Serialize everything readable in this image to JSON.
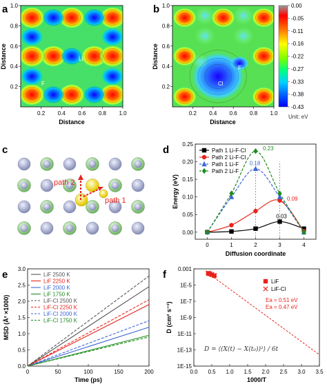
{
  "panels": {
    "a": {
      "label": "a",
      "xlabel": "Distance",
      "ylabel": "Distance",
      "atom1": "Li",
      "atom2": "F"
    },
    "b": {
      "label": "b",
      "xlabel": "Distance",
      "ylabel": "Distance",
      "atom1": "F",
      "atom2": "Cl"
    },
    "c": {
      "label": "c",
      "path1": "path 1",
      "path2": "path 2"
    },
    "d": {
      "label": "d"
    },
    "e": {
      "label": "e"
    },
    "f": {
      "label": "f",
      "formula": "D = ⟨(X(t) − X(t₀))²⟩ / 6t"
    }
  },
  "colorbar": {
    "ticks": [
      "0.00",
      "-0.05",
      "-0.11",
      "-0.16",
      "-0.22",
      "-0.27",
      "-0.33",
      "-0.38",
      "-0.43"
    ],
    "unit": "Unit: eV",
    "colors": [
      "#999999",
      "#ff0000",
      "#ff8000",
      "#ffff00",
      "#80ff00",
      "#00ff80",
      "#00c0ff",
      "#0060ff",
      "#0000ff"
    ]
  },
  "contour_axes": {
    "x_ticks": [
      "0.2",
      "0.4",
      "0.6",
      "0.8",
      "1.0"
    ],
    "y_ticks": [
      "0.2",
      "0.4",
      "0.6",
      "0.8",
      "1.0"
    ]
  },
  "chart_data": [
    {
      "panel": "d",
      "type": "line",
      "xlabel": "Diffusion coordinate",
      "ylabel": "Energy (eV)",
      "xlim": [
        -0.5,
        4.5
      ],
      "ylim": [
        -0.02,
        0.25
      ],
      "x_ticks": [
        0,
        1,
        2,
        3,
        4
      ],
      "y_ticks": [
        "0.00",
        "0.05",
        "0.10",
        "0.15",
        "0.20",
        "0.25"
      ],
      "series": [
        {
          "name": "Path 1 Li-F-Cl",
          "color": "#000000",
          "dash": "solid",
          "marker": "square",
          "x": [
            0,
            1,
            2,
            3,
            4
          ],
          "y": [
            0.0,
            0.002,
            0.01,
            0.03,
            0.01
          ]
        },
        {
          "name": "Path 2 Li-F-Cl",
          "color": "#e8231c",
          "dash": "solid",
          "marker": "circle",
          "x": [
            0,
            1,
            2,
            3,
            4
          ],
          "y": [
            0.0,
            0.02,
            0.06,
            0.09,
            0.003
          ]
        },
        {
          "name": "Path 1 Li-F",
          "color": "#3d67d6",
          "dash": "dash",
          "marker": "triangle",
          "x": [
            0,
            1,
            2,
            3,
            4
          ],
          "y": [
            0.0,
            0.1,
            0.18,
            0.1,
            0.0
          ]
        },
        {
          "name": "Path 2 Li-F",
          "color": "#1f8a1f",
          "dash": "dash",
          "marker": "diamond",
          "x": [
            0,
            1,
            2,
            3,
            4
          ],
          "y": [
            0.0,
            0.11,
            0.23,
            0.11,
            0.0
          ]
        }
      ],
      "annotations": [
        {
          "text": "0.23",
          "x": 2.3,
          "y": 0.232,
          "color": "#1f8a1f"
        },
        {
          "text": "0.18",
          "x": 1.75,
          "y": 0.19,
          "color": "#3d67d6"
        },
        {
          "text": "0.09",
          "x": 3.3,
          "y": 0.09,
          "color": "#e8231c"
        },
        {
          "text": "0.03",
          "x": 2.85,
          "y": 0.04,
          "color": "#000000"
        }
      ]
    },
    {
      "panel": "e",
      "type": "line",
      "xlabel": "Time (ps)",
      "ylabel": "MSD (Å² ×1000)",
      "xlim": [
        0,
        200
      ],
      "ylim": [
        0,
        3.0
      ],
      "x_ticks": [
        0,
        50,
        100,
        150,
        200
      ],
      "y_ticks": [
        0.0,
        0.5,
        1.0,
        1.5,
        2.0,
        2.5,
        3.0
      ],
      "series": [
        {
          "name": "LiF 2500 K",
          "color": "#555555",
          "dash": "solid",
          "x": [
            0,
            200
          ],
          "y": [
            0,
            2.45
          ]
        },
        {
          "name": "LiF 2250 K",
          "color": "#e8231c",
          "dash": "solid",
          "x": [
            0,
            200
          ],
          "y": [
            0,
            1.9
          ]
        },
        {
          "name": "LiF 2000 K",
          "color": "#3d67d6",
          "dash": "solid",
          "x": [
            0,
            200
          ],
          "y": [
            0,
            1.2
          ]
        },
        {
          "name": "LiF 1750 K",
          "color": "#1f8a1f",
          "dash": "solid",
          "x": [
            0,
            200
          ],
          "y": [
            0,
            0.95
          ]
        },
        {
          "name": "LiF-Cl 2500 K",
          "color": "#555555",
          "dash": "dash",
          "x": [
            0,
            200
          ],
          "y": [
            0,
            2.78
          ]
        },
        {
          "name": "LiF-Cl 2250 K",
          "color": "#e8231c",
          "dash": "dash",
          "x": [
            0,
            200
          ],
          "y": [
            0,
            2.05
          ]
        },
        {
          "name": "LiF-Cl 2000 K",
          "color": "#3d67d6",
          "dash": "dash",
          "x": [
            0,
            200
          ],
          "y": [
            0,
            1.4
          ]
        },
        {
          "name": "LiF-Cl 1750 K",
          "color": "#1f8a1f",
          "dash": "dash",
          "x": [
            0,
            200
          ],
          "y": [
            0,
            0.9
          ]
        }
      ]
    },
    {
      "panel": "f",
      "type": "scatter",
      "xlabel": "1000/T",
      "ylabel": "D (cm² s⁻¹)",
      "xlim": [
        0,
        3.5
      ],
      "ylim_log10": [
        -15,
        -3
      ],
      "log_y": true,
      "x_ticks": [
        "0.0",
        "0.5",
        "1.0",
        "1.5",
        "2.0",
        "2.5",
        "3.0",
        "3.5"
      ],
      "y_ticks": [
        "0.001",
        "1E-5",
        "1E-7",
        "1E-9",
        "1E-11",
        "1E-13",
        "1E-15"
      ],
      "series": [
        {
          "name": "LiF",
          "color": "#e8231c",
          "marker": "square",
          "x": [
            0.4,
            0.44,
            0.5,
            0.57
          ],
          "log10_y": [
            -3.55,
            -3.62,
            -3.72,
            -3.85
          ]
        },
        {
          "name": "LiF-Cl",
          "color": "#e8231c",
          "marker": "x",
          "x": [
            0.4,
            0.44,
            0.5,
            0.57
          ],
          "log10_y": [
            -3.5,
            -3.57,
            -3.68,
            -3.8
          ]
        }
      ],
      "fit_line": {
        "x": [
          0.4,
          3.5
        ],
        "log10_y": [
          -3.55,
          -13.6
        ],
        "color": "#e8231c",
        "dash": "dash"
      },
      "notes": [
        "Ea = 0.51 eV",
        "Ea = 0.47 eV"
      ]
    }
  ]
}
